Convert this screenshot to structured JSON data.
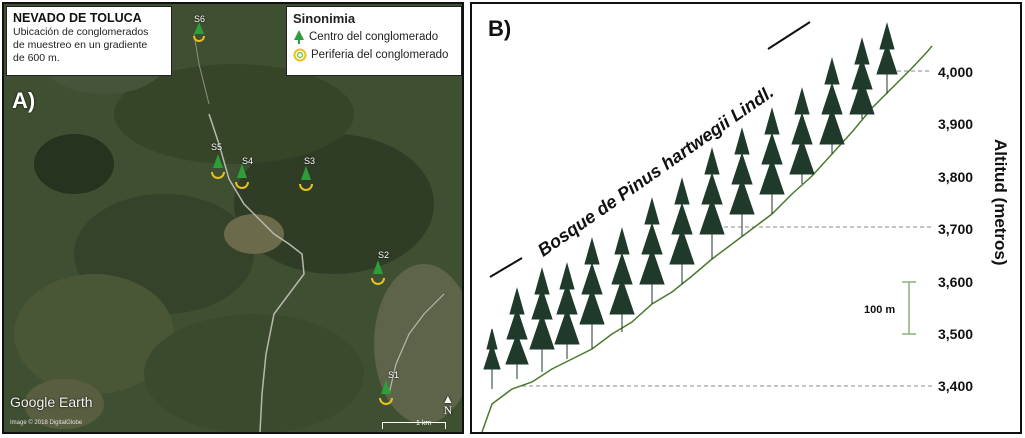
{
  "panel_a": {
    "label": "A)",
    "title": "NEVADO DE TOLUCA",
    "subtitle_lines": [
      "Ubicación de conglomerados",
      "de muestreo en un gradiente",
      "de 600 m."
    ],
    "legend": {
      "title": "Sinonimia",
      "items": [
        {
          "label": "Centro del conglomerado",
          "icon": "tree-icon",
          "color": "#2e9e3a"
        },
        {
          "label": "Periferia del conglomerado",
          "icon": "ring-icon",
          "color": "#e8c21a"
        }
      ]
    },
    "sites": [
      "S1",
      "S2",
      "S3",
      "S4",
      "S5",
      "S6"
    ],
    "watermark": "Google Earth",
    "credit": "Image © 2018 DigitalGlobe",
    "scale_label": "1 km",
    "north_label": "N"
  },
  "panel_b": {
    "label": "B)",
    "forest_label": "Bosque de Pinus hartwegii Lindl.",
    "y_axis_label": "Altitud (metros)",
    "y_ticks": [
      "4,000",
      "3,900",
      "3,800",
      "3,700",
      "3,600",
      "3,500",
      "3,400"
    ],
    "scalebar_label": "100 m"
  },
  "chart_data": {
    "type": "diagram",
    "ylabel": "Altitud (metros)",
    "y_ticks": [
      4000,
      3900,
      3800,
      3700,
      3600,
      3500,
      3400
    ]
  }
}
